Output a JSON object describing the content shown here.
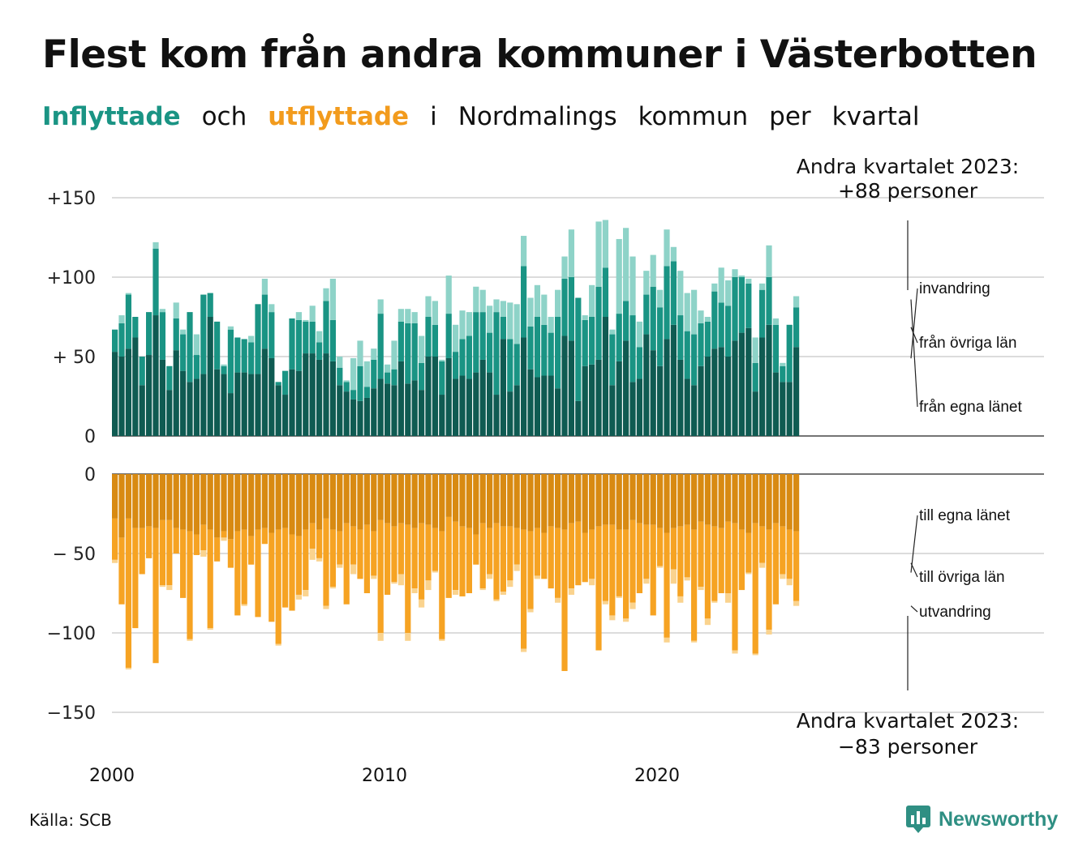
{
  "title": "Flest kom från andra kommuner i Västerbotten",
  "subtitle": {
    "in": "Inflyttade",
    "och": "och",
    "out": "utflyttade",
    "rest": [
      "i",
      "Nordmalings",
      "kommun",
      "per",
      "kvartal"
    ]
  },
  "annotations": {
    "top_line1": "Andra kvartalet 2023:",
    "top_line2": "+88 personer",
    "bottom_line1": "Andra kvartalet 2023:",
    "bottom_line2": "−83 personer"
  },
  "source": "Källa: SCB",
  "brand": "Newsworthy",
  "colors": {
    "in_egna": "#0f5b52",
    "in_ovriga": "#1a9484",
    "in_invandring": "#8ed3c8",
    "out_egna": "#d88a12",
    "out_ovriga": "#f6a323",
    "out_utvandring": "#fad38e",
    "in_word": "#1a9484",
    "out_word": "#f29b1d",
    "brand": "#2f8f83"
  },
  "chart_data": {
    "type": "bar",
    "stacked": true,
    "x_start": "2000 Q1",
    "x_tick_labels": [
      "2000",
      "2010",
      "2020"
    ],
    "top_axis_labels": [
      "0",
      "+ 50",
      "+100",
      "+150"
    ],
    "bottom_axis_labels": [
      "0",
      "− 50",
      "−100",
      "−150"
    ],
    "top_ylim": [
      0,
      150
    ],
    "bottom_ylim": [
      -150,
      0
    ],
    "grid": true,
    "inflow": {
      "series": [
        {
          "name": "från egna länet",
          "values": [
            53,
            50,
            55,
            62,
            32,
            51,
            76,
            48,
            29,
            54,
            41,
            34,
            36,
            39,
            75,
            42,
            39,
            27,
            40,
            40,
            39,
            39,
            55,
            49,
            32,
            26,
            42,
            41,
            52,
            52,
            48,
            52,
            47,
            32,
            28,
            23,
            22,
            24,
            30,
            36,
            33,
            32,
            47,
            33,
            35,
            29,
            50,
            50,
            26,
            49,
            36,
            38,
            36,
            40,
            48,
            40,
            26,
            61,
            28,
            32,
            62,
            42,
            37,
            38,
            38,
            30,
            63,
            60,
            22,
            44,
            45,
            48,
            75,
            32,
            47,
            60,
            34,
            36,
            64,
            54,
            44,
            61,
            70,
            48,
            36,
            32,
            44,
            50,
            55,
            56,
            50,
            60,
            65,
            68,
            28,
            62,
            70,
            40,
            34,
            34,
            56
          ]
        },
        {
          "name": "från övriga län",
          "values": [
            14,
            21,
            34,
            13,
            18,
            27,
            42,
            30,
            15,
            20,
            23,
            44,
            15,
            50,
            15,
            30,
            5,
            40,
            22,
            21,
            20,
            44,
            34,
            29,
            2,
            15,
            32,
            32,
            20,
            20,
            11,
            33,
            26,
            11,
            6,
            6,
            22,
            7,
            18,
            41,
            7,
            10,
            25,
            38,
            36,
            17,
            25,
            20,
            21,
            28,
            17,
            23,
            27,
            38,
            30,
            25,
            52,
            14,
            33,
            26,
            45,
            27,
            38,
            32,
            27,
            45,
            36,
            40,
            65,
            29,
            30,
            46,
            31,
            32,
            30,
            25,
            42,
            20,
            25,
            40,
            37,
            46,
            40,
            28,
            30,
            32,
            27,
            22,
            36,
            28,
            32,
            40,
            35,
            28,
            18,
            30,
            30,
            30,
            10,
            36,
            25
          ]
        },
        {
          "name": "invandring",
          "values": [
            0,
            5,
            1,
            0,
            0,
            0,
            4,
            2,
            0,
            10,
            3,
            0,
            13,
            0,
            0,
            0,
            1,
            2,
            0,
            0,
            4,
            0,
            10,
            5,
            0,
            0,
            0,
            5,
            1,
            10,
            7,
            8,
            26,
            7,
            1,
            20,
            16,
            16,
            7,
            9,
            5,
            18,
            8,
            9,
            7,
            17,
            13,
            15,
            1,
            24,
            17,
            18,
            15,
            16,
            14,
            17,
            8,
            10,
            23,
            25,
            19,
            18,
            20,
            19,
            10,
            17,
            14,
            30,
            0,
            3,
            20,
            41,
            30,
            3,
            47,
            46,
            37,
            16,
            15,
            20,
            11,
            23,
            9,
            28,
            24,
            28,
            8,
            3,
            5,
            22,
            16,
            5,
            1,
            3,
            16,
            4,
            20,
            4,
            2,
            0,
            7
          ]
        }
      ]
    },
    "outflow": {
      "series": [
        {
          "name": "till egna länet",
          "values": [
            28,
            40,
            28,
            34,
            34,
            33,
            34,
            29,
            29,
            34,
            35,
            36,
            38,
            32,
            35,
            40,
            36,
            41,
            36,
            35,
            39,
            35,
            34,
            37,
            35,
            34,
            38,
            39,
            35,
            31,
            35,
            28,
            35,
            36,
            31,
            33,
            35,
            32,
            36,
            29,
            31,
            33,
            31,
            32,
            34,
            31,
            32,
            34,
            36,
            27,
            30,
            33,
            34,
            38,
            31,
            34,
            31,
            33,
            33,
            34,
            35,
            36,
            34,
            37,
            33,
            34,
            35,
            31,
            30,
            37,
            35,
            33,
            32,
            32,
            35,
            35,
            29,
            31,
            32,
            32,
            34,
            37,
            34,
            33,
            32,
            35,
            30,
            32,
            33,
            34,
            30,
            31,
            35,
            37,
            31,
            33,
            35,
            31,
            33,
            35,
            36
          ]
        },
        {
          "name": "till övriga län",
          "values": [
            26,
            42,
            94,
            63,
            29,
            20,
            85,
            41,
            41,
            16,
            43,
            68,
            13,
            16,
            62,
            15,
            4,
            18,
            53,
            47,
            18,
            55,
            10,
            56,
            72,
            50,
            48,
            37,
            38,
            16,
            18,
            55,
            36,
            21,
            51,
            24,
            31,
            43,
            28,
            71,
            45,
            35,
            32,
            68,
            38,
            48,
            35,
            27,
            68,
            51,
            43,
            44,
            41,
            19,
            41,
            29,
            48,
            41,
            34,
            23,
            75,
            49,
            30,
            29,
            39,
            44,
            89,
            41,
            40,
            31,
            31,
            78,
            48,
            57,
            42,
            56,
            52,
            44,
            34,
            57,
            24,
            66,
            26,
            44,
            33,
            70,
            41,
            59,
            47,
            41,
            45,
            80,
            38,
            25,
            82,
            23,
            63,
            51,
            30,
            31,
            44
          ]
        },
        {
          "name": "utvandring",
          "values": [
            2,
            0,
            1,
            0,
            0,
            0,
            0,
            1,
            3,
            0,
            0,
            1,
            0,
            4,
            1,
            0,
            2,
            0,
            0,
            1,
            0,
            0,
            0,
            0,
            1,
            0,
            0,
            3,
            4,
            7,
            2,
            2,
            1,
            2,
            0,
            6,
            0,
            0,
            2,
            5,
            0,
            1,
            7,
            5,
            3,
            5,
            6,
            1,
            1,
            0,
            3,
            0,
            0,
            0,
            1,
            3,
            1,
            2,
            4,
            4,
            2,
            2,
            2,
            0,
            0,
            3,
            0,
            4,
            0,
            0,
            4,
            0,
            2,
            3,
            1,
            2,
            4,
            0,
            3,
            0,
            1,
            3,
            9,
            4,
            2,
            1,
            2,
            4,
            1,
            0,
            6,
            2,
            0,
            1,
            1,
            3,
            3,
            0,
            3,
            4,
            3
          ]
        }
      ]
    }
  }
}
